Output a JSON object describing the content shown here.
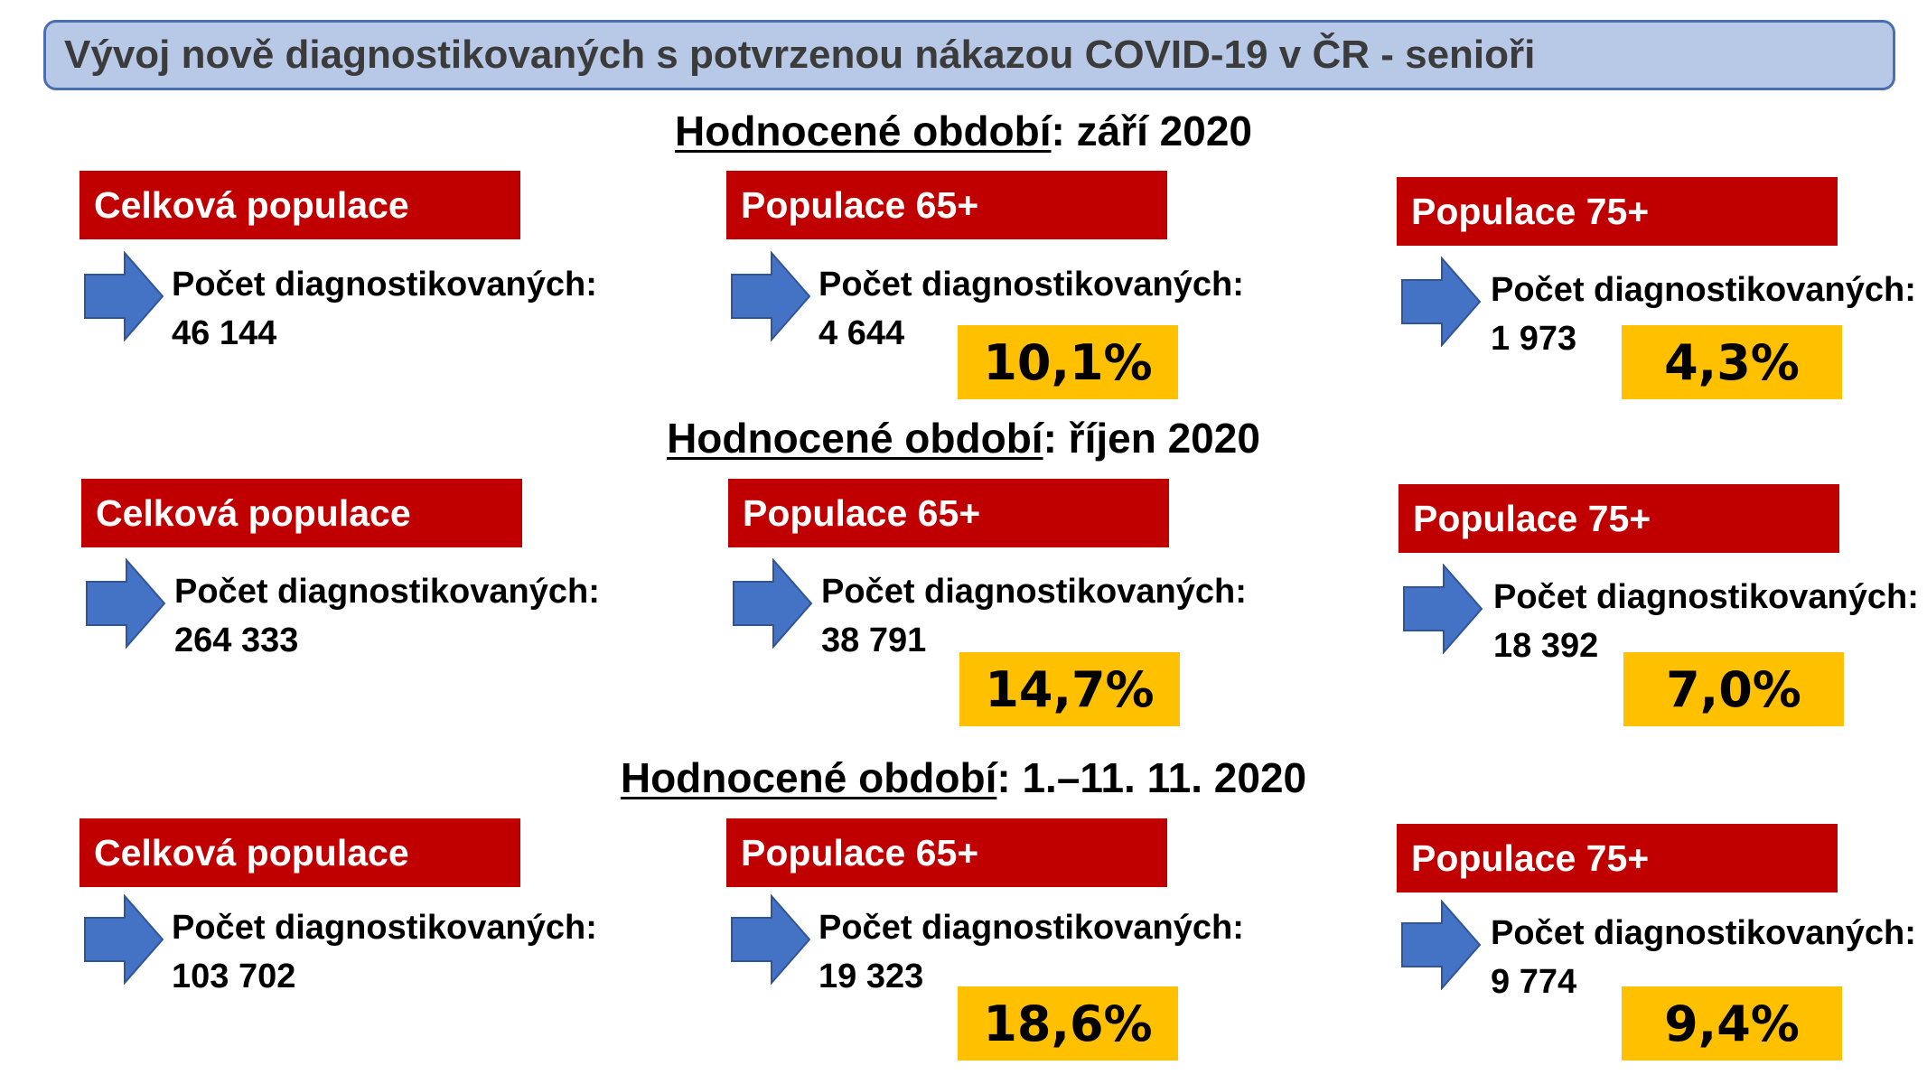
{
  "title": "Vývoj nově diagnostikovaných s potvrzenou nákazou COVID-19 v ČR - senioři",
  "period_label": "Hodnocené období",
  "count_label": "Počet diagnostikovaných:",
  "categories": {
    "total": "Celková populace",
    "p65": "Populace 65+",
    "p75": "Populace 75+"
  },
  "colors": {
    "title_bg": "#b7c9e6",
    "title_border": "#4a6fae",
    "category_bg": "#c00000",
    "arrow": "#4472c4",
    "percent_bg": "#ffc000"
  },
  "periods": [
    {
      "value": ": září 2020",
      "total": {
        "count": "46 144"
      },
      "p65": {
        "count": "4 644",
        "percent": "10,1%"
      },
      "p75": {
        "count": "1 973",
        "percent": "4,3%"
      }
    },
    {
      "value": ": říjen 2020",
      "total": {
        "count": "264 333"
      },
      "p65": {
        "count": "38 791",
        "percent": "14,7%"
      },
      "p75": {
        "count": "18 392",
        "percent": "7,0%"
      }
    },
    {
      "value": ": 1.–11. 11. 2020",
      "total": {
        "count": "103 702"
      },
      "p65": {
        "count": "19 323",
        "percent": "18,6%"
      },
      "p75": {
        "count": "9 774",
        "percent": "9,4%"
      }
    }
  ]
}
